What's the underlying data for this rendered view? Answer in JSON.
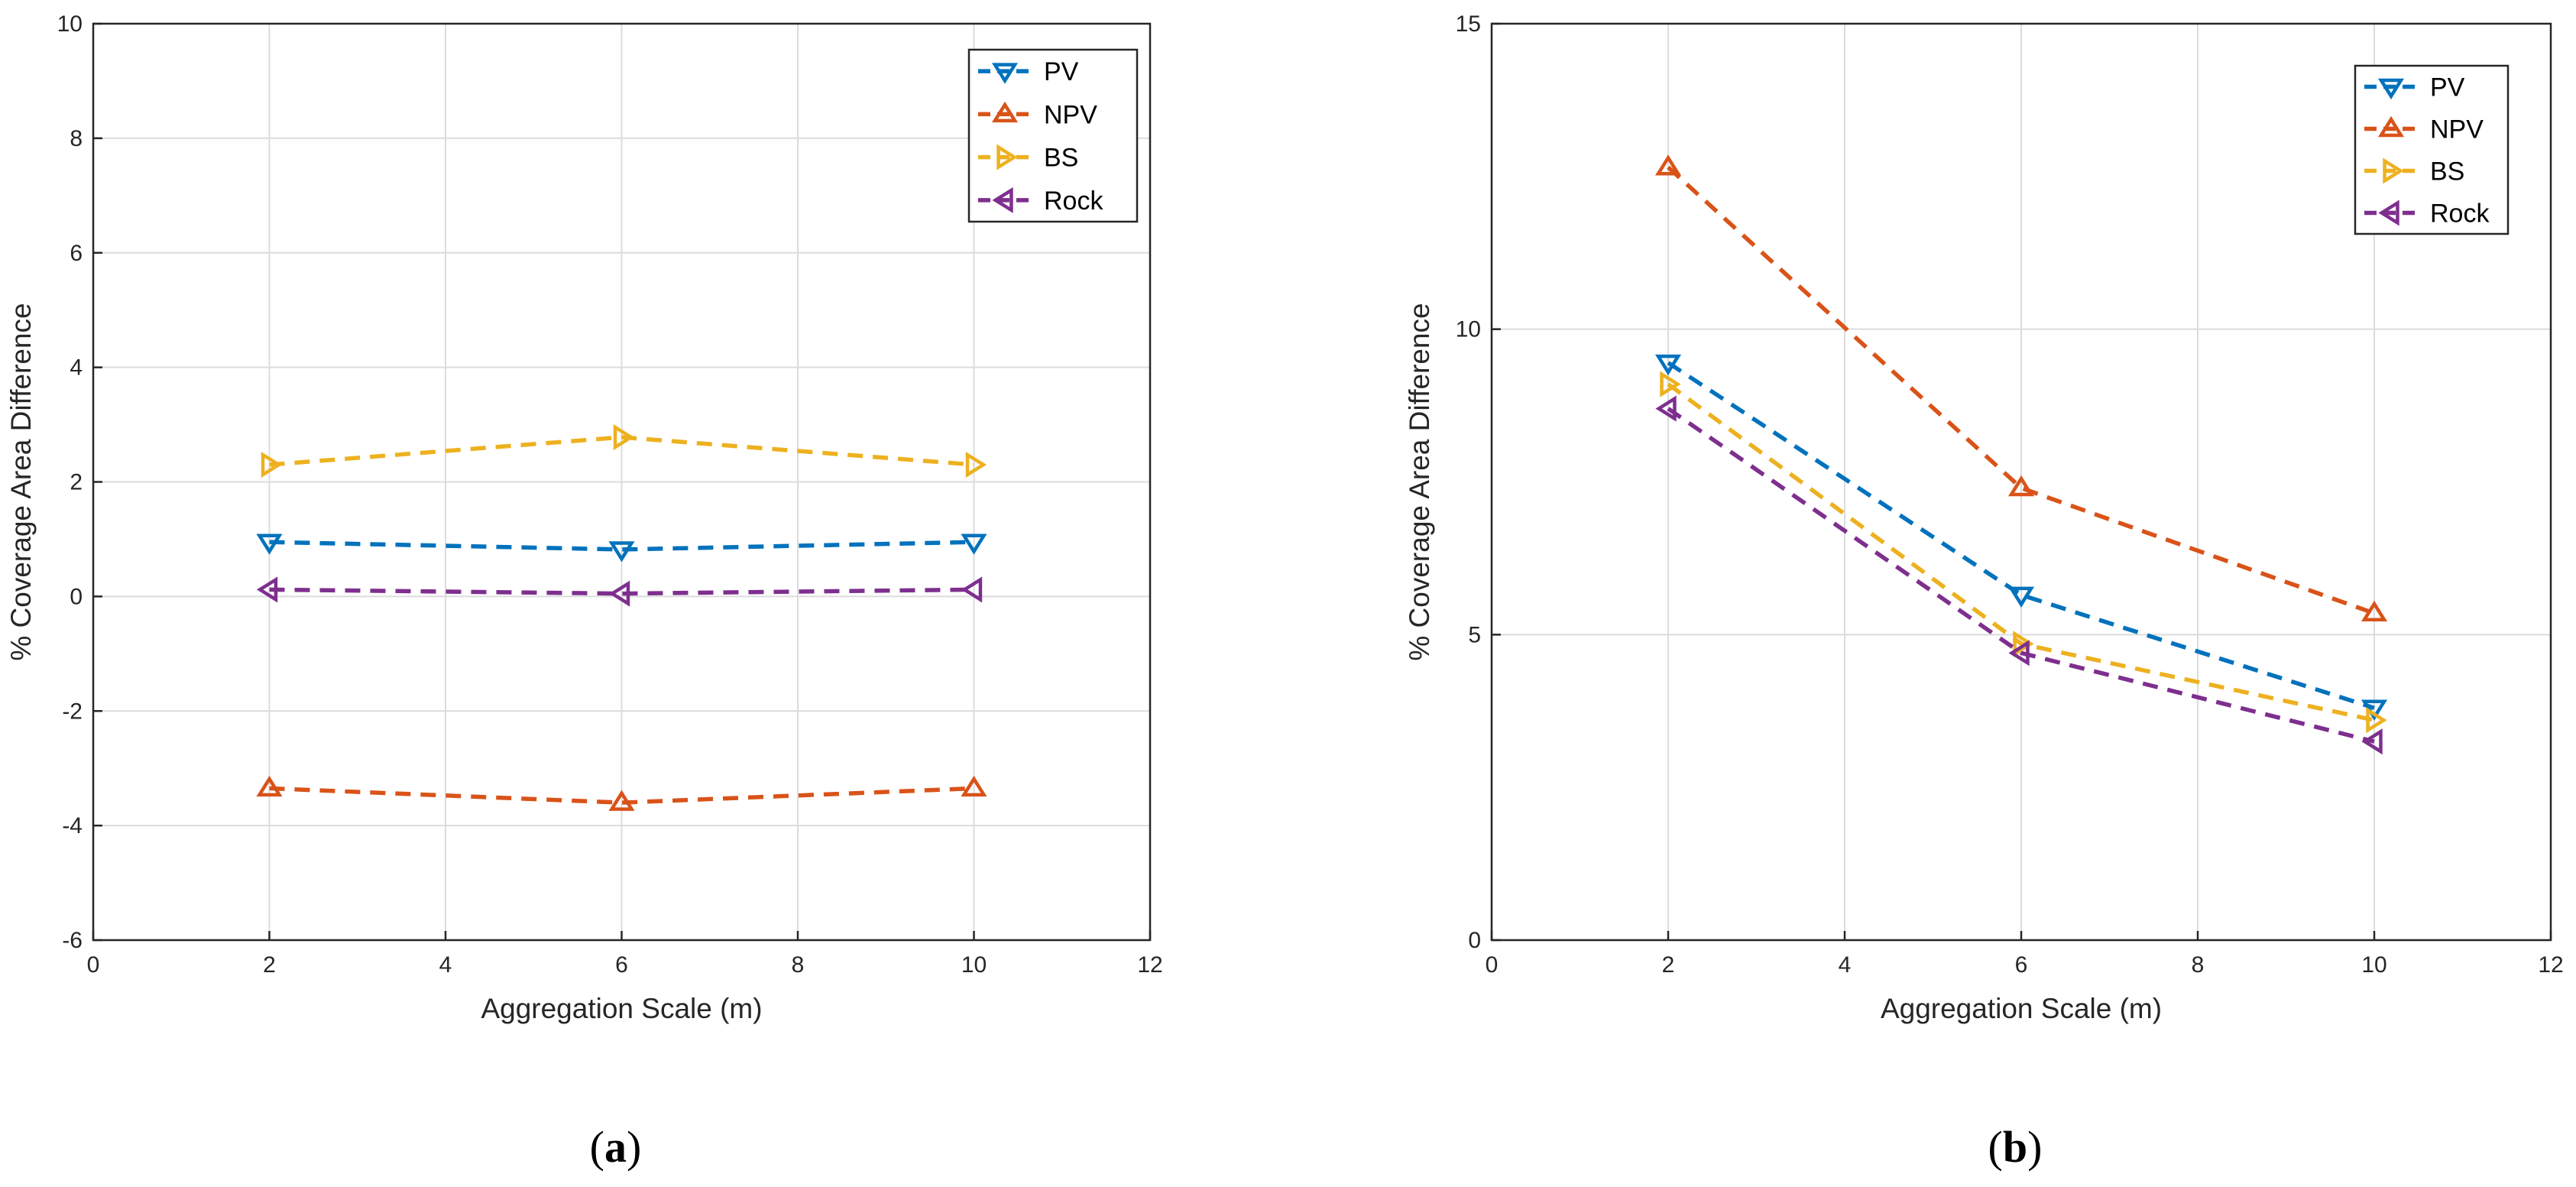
{
  "chart_data": [
    {
      "type": "line",
      "panel_label": "(a)",
      "panel_letter": "a",
      "xlabel": "Aggregation Scale (m)",
      "ylabel": "% Coverage Area Difference",
      "xlim": [
        0,
        12
      ],
      "ylim": [
        -6,
        10
      ],
      "xticks": [
        0,
        2,
        4,
        6,
        8,
        10,
        12
      ],
      "yticks": [
        -6,
        -4,
        -2,
        0,
        2,
        4,
        6,
        8,
        10
      ],
      "grid": true,
      "legend_position": "top-right",
      "x": [
        2,
        6,
        10
      ],
      "series": [
        {
          "name": "PV",
          "values": [
            0.95,
            0.82,
            0.95
          ],
          "color": "#0072BD",
          "marker": "triangle-down"
        },
        {
          "name": "NPV",
          "values": [
            -3.35,
            -3.6,
            -3.35
          ],
          "color": "#D95319",
          "marker": "triangle-up"
        },
        {
          "name": "BS",
          "values": [
            2.3,
            2.78,
            2.3
          ],
          "color": "#EDB120",
          "marker": "triangle-right"
        },
        {
          "name": "Rock",
          "values": [
            0.12,
            0.05,
            0.12
          ],
          "color": "#7E2F8E",
          "marker": "triangle-left"
        }
      ]
    },
    {
      "type": "line",
      "panel_label": "(b)",
      "panel_letter": "b",
      "xlabel": "Aggregation Scale (m)",
      "ylabel": "% Coverage Area Difference",
      "xlim": [
        0,
        12
      ],
      "ylim": [
        0,
        15
      ],
      "xticks": [
        0,
        2,
        4,
        6,
        8,
        10,
        12
      ],
      "yticks": [
        0,
        5,
        10,
        15
      ],
      "grid": true,
      "legend_position": "top-right",
      "x": [
        2,
        6,
        10
      ],
      "series": [
        {
          "name": "PV",
          "values": [
            9.45,
            5.65,
            3.8
          ],
          "color": "#0072BD",
          "marker": "triangle-down"
        },
        {
          "name": "NPV",
          "values": [
            12.65,
            7.4,
            5.35
          ],
          "color": "#D95319",
          "marker": "triangle-up"
        },
        {
          "name": "BS",
          "values": [
            9.1,
            4.85,
            3.6
          ],
          "color": "#EDB120",
          "marker": "triangle-right"
        },
        {
          "name": "Rock",
          "values": [
            8.7,
            4.7,
            3.25
          ],
          "color": "#7E2F8E",
          "marker": "triangle-left"
        }
      ]
    }
  ]
}
